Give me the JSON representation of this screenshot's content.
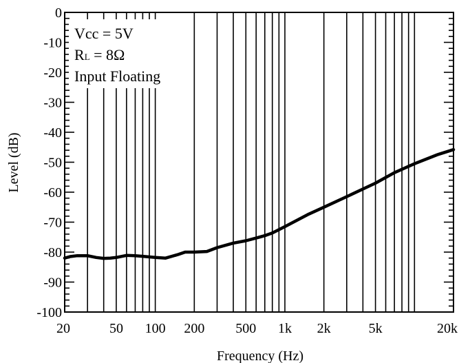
{
  "chart_data": {
    "type": "line",
    "xlabel": "Frequency (Hz)",
    "ylabel": "Level (dB)",
    "x_scale": "log",
    "xlim": [
      20,
      20000
    ],
    "ylim": [
      -100,
      0
    ],
    "grid": true,
    "y_ticks": [
      0,
      -10,
      -20,
      -30,
      -40,
      -50,
      -60,
      -70,
      -80,
      -90,
      -100
    ],
    "y_tick_labels": [
      "0",
      "-10",
      "-20",
      "-30",
      "-40",
      "-50",
      "-60",
      "-70",
      "-80",
      "-90",
      "-100"
    ],
    "x_ticks": [
      20,
      50,
      100,
      200,
      500,
      1000,
      2000,
      5000,
      20000
    ],
    "x_tick_labels": [
      "20",
      "50",
      "100",
      "200",
      "500",
      "1k",
      "2k",
      "5k",
      "20k"
    ],
    "annotation": {
      "line1": "Vcc = 5V",
      "line2_main": "R",
      "line2_sub": "L",
      "line2_rest": " = 8Ω",
      "line3": "Input Floating"
    },
    "series": [
      {
        "x": [
          20,
          22,
          25,
          30,
          35,
          40,
          45,
          50,
          60,
          70,
          80,
          100,
          120,
          150,
          170,
          200,
          250,
          300,
          400,
          500,
          600,
          700,
          800,
          1000,
          1500,
          2000,
          3000,
          5000,
          7000,
          10000,
          15000,
          20000
        ],
        "y": [
          -82,
          -81.5,
          -81.2,
          -81.2,
          -81.8,
          -82.1,
          -82,
          -81.8,
          -81.1,
          -81.2,
          -81.4,
          -81.8,
          -82,
          -80.8,
          -80,
          -80,
          -79.8,
          -78.5,
          -77,
          -76.2,
          -75.3,
          -74.5,
          -73.6,
          -71.5,
          -67.5,
          -65,
          -61.5,
          -57,
          -53.5,
          -50.5,
          -47.5,
          -45.8
        ]
      }
    ]
  }
}
